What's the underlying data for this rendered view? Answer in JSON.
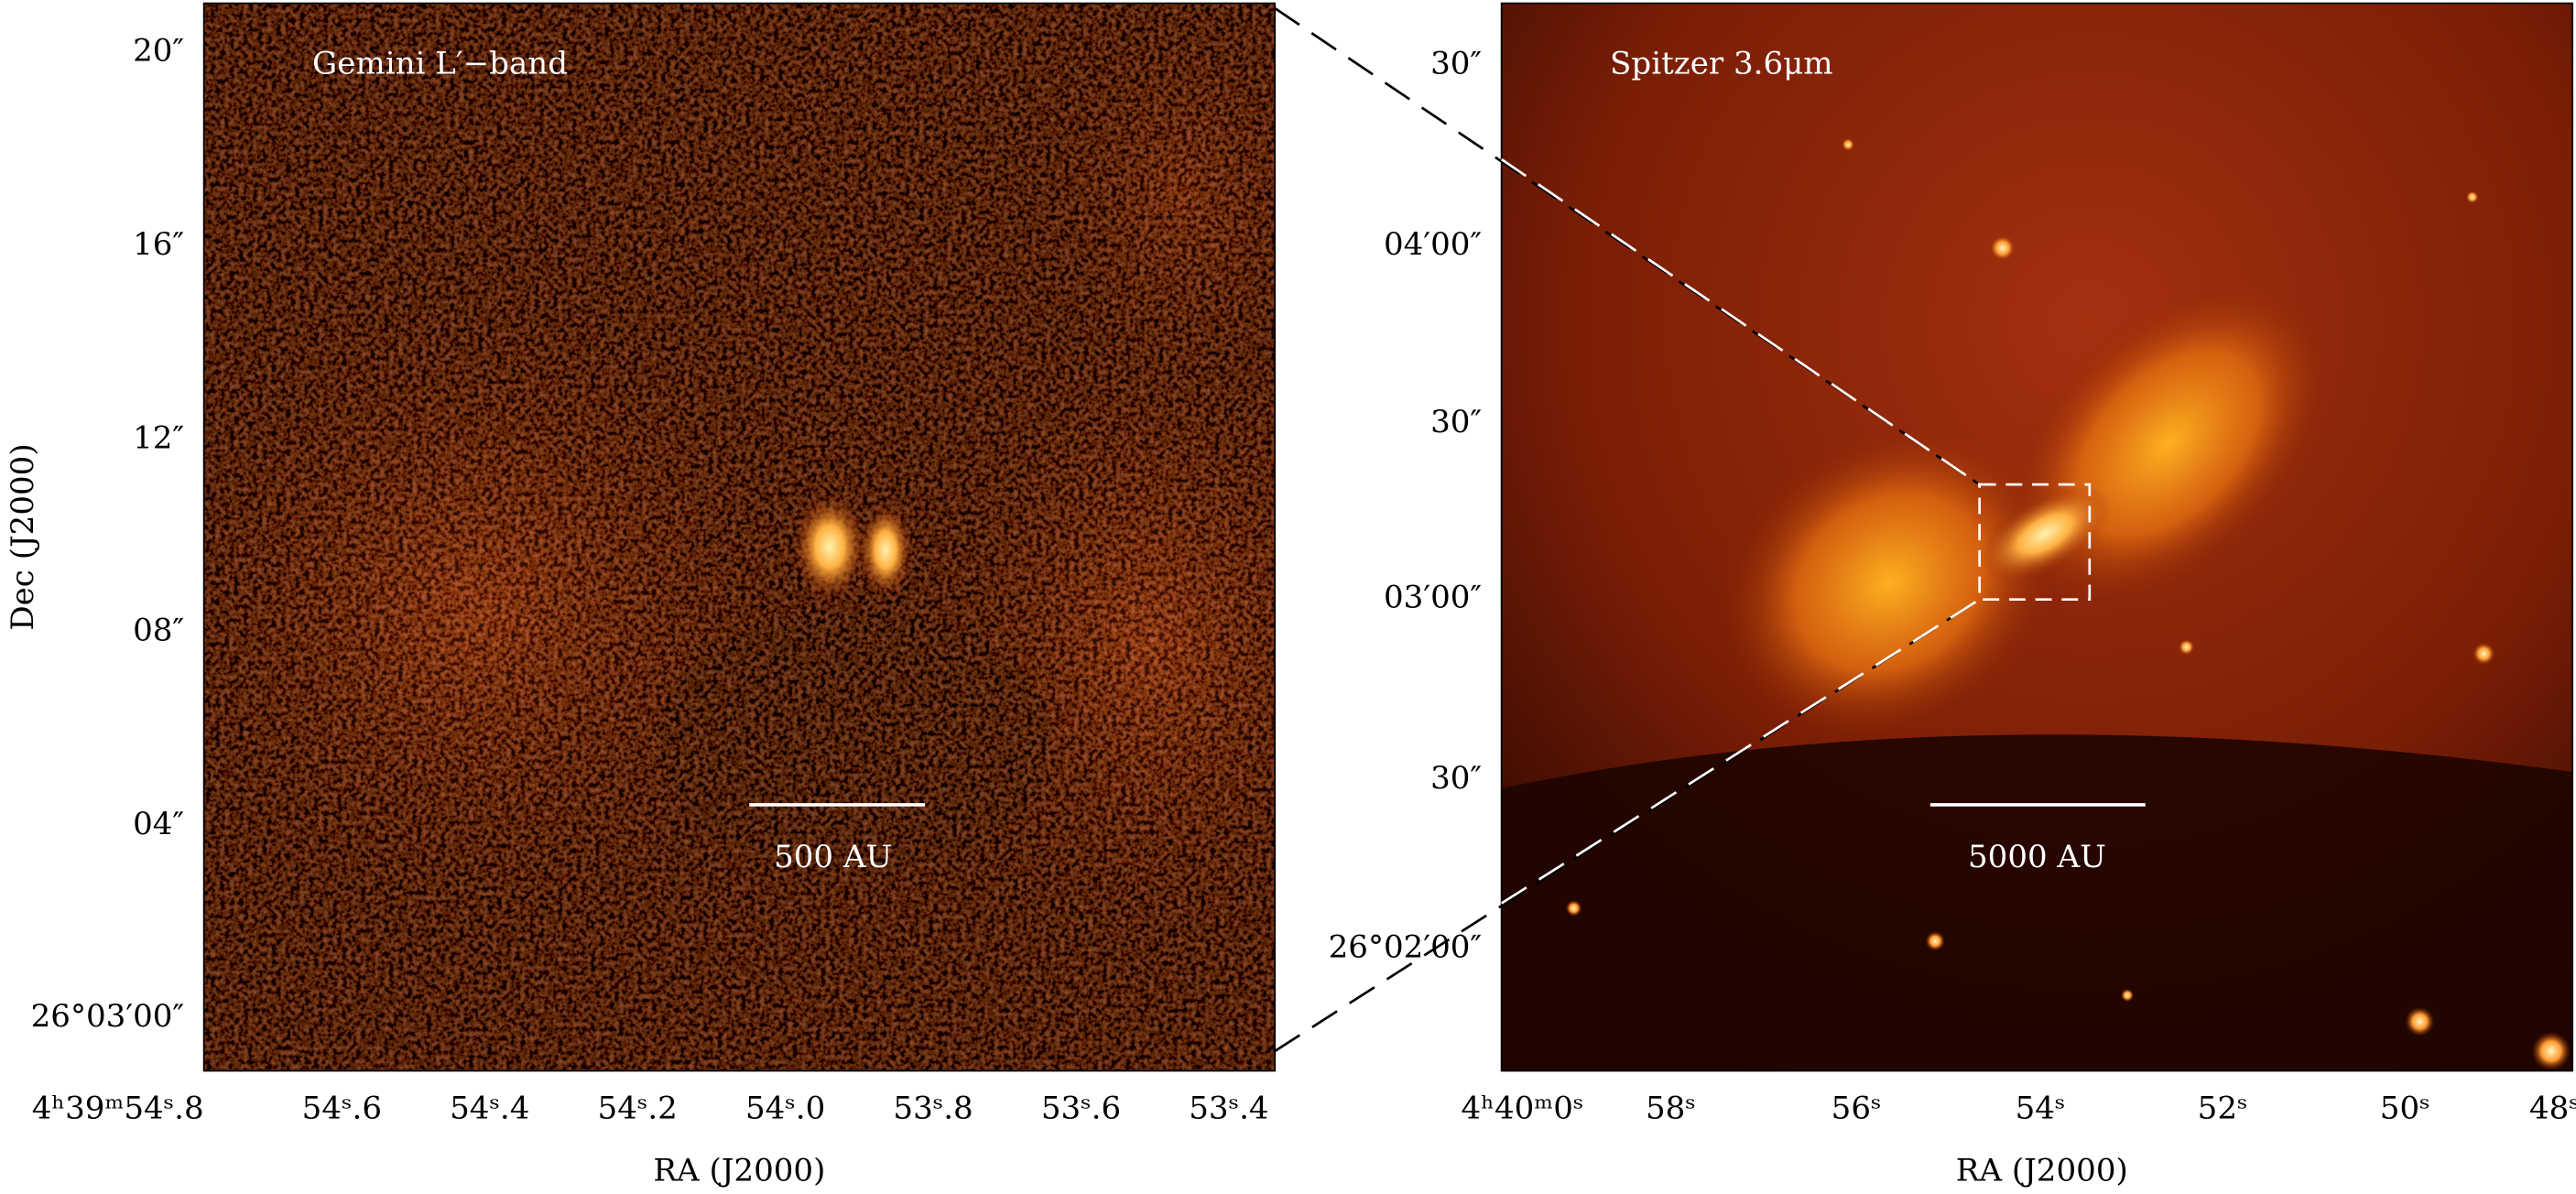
{
  "y_label": "Dec (J2000)",
  "panels": [
    {
      "title": "Gemini L′−band",
      "scale_bar": "500 AU",
      "x_label": "RA (J2000)",
      "x_ticks": [
        "4ʰ39ᵐ54ˢ.8",
        "54ˢ.6",
        "54ˢ.4",
        "54ˢ.2",
        "54ˢ.0",
        "53ˢ.8",
        "53ˢ.6",
        "53ˢ.4"
      ],
      "y_ticks": [
        "20″",
        "16″",
        "12″",
        "08″",
        "04″",
        "26°03′00″"
      ]
    },
    {
      "title": "Spitzer 3.6μm",
      "scale_bar": "5000 AU",
      "x_label": "RA (J2000)",
      "x_ticks": [
        "4ʰ40ᵐ0ˢ",
        "58ˢ",
        "56ˢ",
        "54ˢ",
        "52ˢ",
        "50ˢ",
        "48ˢ"
      ],
      "y_ticks": [
        "30″",
        "04′00″",
        "30″",
        "03′00″",
        "30″",
        "26°02′00″"
      ]
    }
  ]
}
